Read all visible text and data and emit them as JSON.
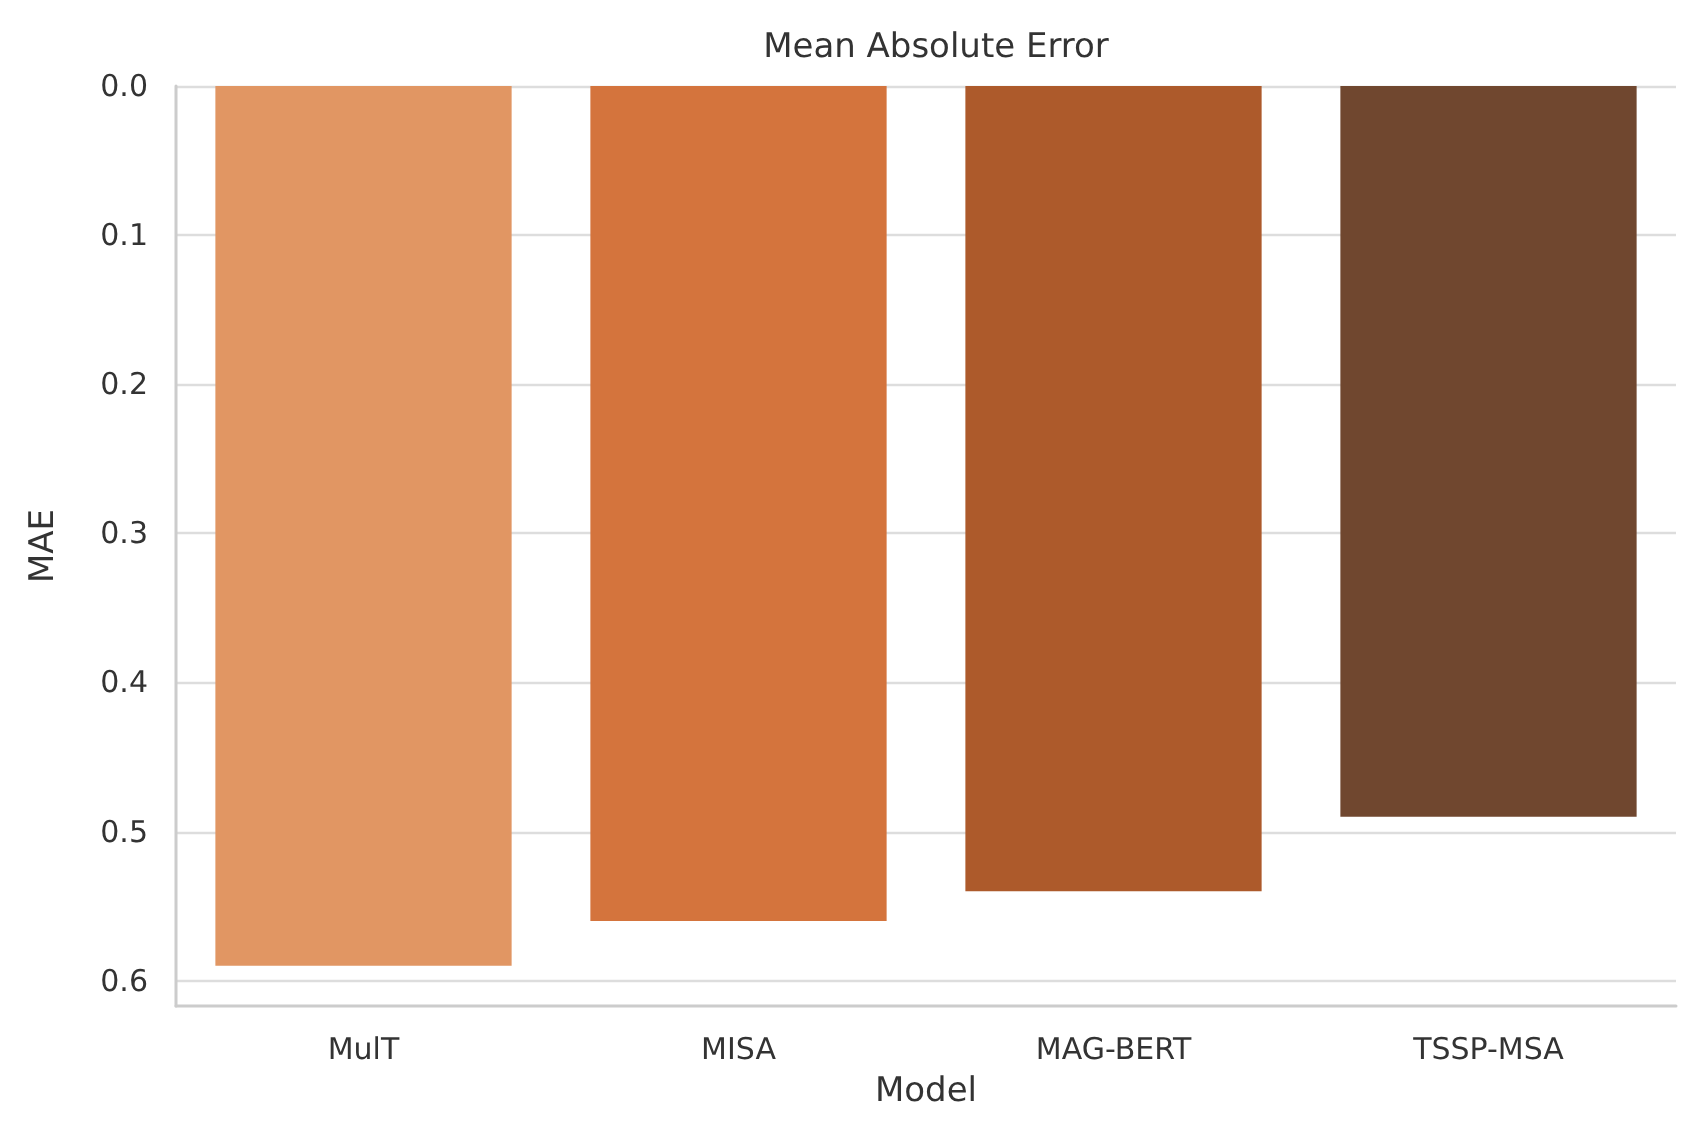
{
  "chart_data": {
    "type": "bar",
    "title": "Mean Absolute Error",
    "xlabel": "Model",
    "ylabel": "MAE",
    "categories": [
      "MulT",
      "MISA",
      "MAG-BERT",
      "TSSP-MSA"
    ],
    "values": [
      0.59,
      0.56,
      0.54,
      0.49
    ],
    "colors": [
      "#e19663",
      "#d4743d",
      "#ad5a2b",
      "#70472f"
    ],
    "ylim": [
      0.617,
      0
    ],
    "yticks": [
      {
        "value": 0,
        "label": "0.0"
      },
      {
        "value": 0.1,
        "label": "0.1"
      },
      {
        "value": 0.2,
        "label": "0.2"
      },
      {
        "value": 0.3,
        "label": "0.3"
      },
      {
        "value": 0.4,
        "label": "0.4"
      },
      {
        "value": 0.5,
        "label": "0.5"
      },
      {
        "value": 0.6,
        "label": "0.6"
      }
    ],
    "grid": "y"
  }
}
